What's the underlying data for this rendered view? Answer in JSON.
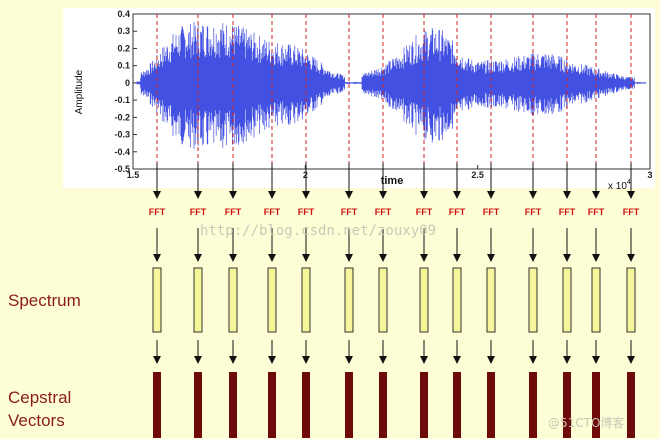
{
  "plot": {
    "ylabel": "Amplitude",
    "xlabel": "time",
    "x_ticks": [
      "1.5",
      "2",
      "2.5",
      "3"
    ],
    "y_ticks": [
      "0.4",
      "0.3",
      "0.2",
      "0.1",
      "0",
      "-0.1",
      "-0.2",
      "-0.3",
      "-0.4",
      "-0.5"
    ],
    "x_multiplier": "x 10",
    "x_exponent": "4",
    "waveform_color": "#2233dd",
    "frame_line_color": "#cc2222"
  },
  "frames": {
    "count": 14,
    "fft_label": "FFT",
    "fft_color": "#cc1111",
    "spectrum_fill": "#f5f59a",
    "cepstral_fill": "#6e0a0a"
  },
  "labels": {
    "spectrum": "Spectrum",
    "cepstral_line1": "Cepstral",
    "cepstral_line2": "Vectors"
  },
  "watermarks": {
    "url": "http://blog.csdn.net/zouxy09",
    "corner": "@51CTO博客"
  }
}
